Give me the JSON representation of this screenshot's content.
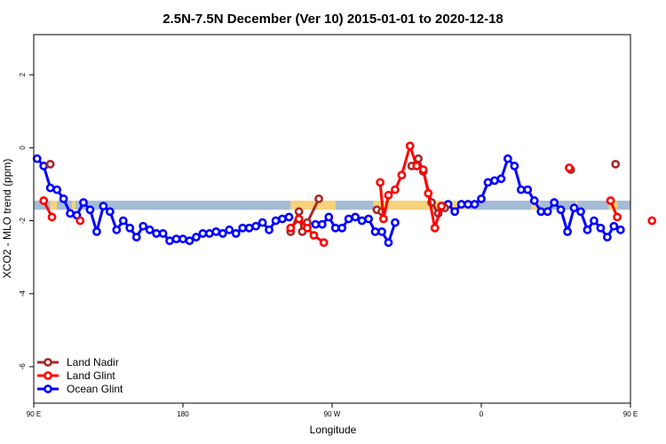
{
  "chart_data": {
    "type": "line",
    "title": "2.5N-7.5N December (Ver 10)   2015-01-01 to 2020-12-18",
    "xlabel": "Longitude",
    "ylabel": "XCO2 - MLO trend (ppm)",
    "xlim": [
      0,
      360
    ],
    "ylim": [
      -7,
      3.1
    ],
    "x_ticks": [
      {
        "value": 0,
        "label": "90 E"
      },
      {
        "value": 90,
        "label": "180"
      },
      {
        "value": 180,
        "label": "90 W"
      },
      {
        "value": 270,
        "label": "0"
      },
      {
        "value": 360,
        "label": "90 E"
      },
      {
        "value": 450,
        "label": "180"
      }
    ],
    "y_ticks": [
      2,
      0,
      -2,
      -4,
      -6
    ],
    "band_colors": {
      "ocean": "#a5bcd6",
      "land": "#f7d27a"
    },
    "bands": [
      {
        "x0": 0,
        "x1": 10,
        "type": "ocean"
      },
      {
        "x0": 10,
        "x1": 14,
        "type": "land"
      },
      {
        "x0": 14,
        "x1": 23,
        "type": "ocean"
      },
      {
        "x0": 23,
        "x1": 25,
        "type": "land"
      },
      {
        "x0": 25,
        "x1": 155,
        "type": "ocean"
      },
      {
        "x0": 155,
        "x1": 182,
        "type": "land"
      },
      {
        "x0": 182,
        "x1": 205,
        "type": "ocean"
      },
      {
        "x0": 205,
        "x1": 262,
        "type": "land"
      },
      {
        "x0": 262,
        "x1": 300,
        "type": "ocean"
      },
      {
        "x0": 300,
        "x1": 305,
        "type": "land"
      },
      {
        "x0": 305,
        "x1": 327,
        "type": "ocean"
      },
      {
        "x0": 327,
        "x1": 328,
        "type": "land"
      },
      {
        "x0": 328,
        "x1": 347,
        "type": "ocean"
      },
      {
        "x0": 347,
        "x1": 352,
        "type": "land"
      },
      {
        "x0": 352,
        "x1": 360,
        "type": "ocean"
      }
    ],
    "band_y": [
      -1.45,
      -1.7
    ],
    "series": [
      {
        "name": "Land Nadir",
        "color": "#a52a2a",
        "segments": [
          [
            [
              10,
              -0.45
            ]
          ],
          [
            [
              155,
              -2.3
            ],
            [
              160,
              -1.75
            ],
            [
              162,
              -2.3
            ],
            [
              165,
              -2.05
            ],
            [
              172,
              -1.4
            ]
          ],
          [
            [
              207,
              -1.7
            ],
            [
              210,
              -1.75
            ]
          ],
          [
            [
              228,
              -0.5
            ],
            [
              232,
              -0.3
            ],
            [
              235,
              -0.65
            ],
            [
              240,
              -1.5
            ],
            [
              244,
              -1.8
            ],
            [
              248,
              -1.65
            ]
          ],
          [
            [
              324,
              -0.6
            ]
          ],
          [
            [
              351,
              -0.45
            ]
          ]
        ]
      },
      {
        "name": "Land Glint",
        "color": "#ff0000",
        "segments": [
          [
            [
              6,
              -1.45
            ],
            [
              11,
              -1.9
            ]
          ],
          [
            [
              28,
              -2.0
            ]
          ],
          [
            [
              155,
              -2.2
            ],
            [
              160,
              -1.95
            ],
            [
              165,
              -2.2
            ],
            [
              169,
              -2.4
            ],
            [
              175,
              -2.6
            ]
          ],
          [
            [
              209,
              -0.95
            ],
            [
              211,
              -1.95
            ],
            [
              214,
              -1.3
            ],
            [
              218,
              -1.15
            ],
            [
              222,
              -0.75
            ],
            [
              227,
              0.05
            ],
            [
              231,
              -0.5
            ],
            [
              235,
              -0.6
            ],
            [
              238,
              -1.25
            ],
            [
              242,
              -2.2
            ],
            [
              246,
              -1.6
            ]
          ],
          [
            [
              323,
              -0.55
            ]
          ],
          [
            [
              348,
              -1.45
            ],
            [
              352,
              -1.9
            ]
          ],
          [
            [
              373,
              -2.0
            ]
          ]
        ]
      },
      {
        "name": "Ocean Glint",
        "color": "#0000ff",
        "segments": [
          [
            [
              2,
              -0.3
            ],
            [
              6,
              -0.5
            ],
            [
              10,
              -1.1
            ],
            [
              14,
              -1.15
            ],
            [
              18,
              -1.4
            ],
            [
              22,
              -1.8
            ],
            [
              26,
              -1.85
            ],
            [
              30,
              -1.5
            ],
            [
              34,
              -1.7
            ],
            [
              38,
              -2.3
            ],
            [
              42,
              -1.6
            ],
            [
              46,
              -1.75
            ],
            [
              50,
              -2.25
            ],
            [
              54,
              -2.0
            ],
            [
              58,
              -2.2
            ],
            [
              62,
              -2.45
            ],
            [
              66,
              -2.15
            ],
            [
              70,
              -2.25
            ],
            [
              74,
              -2.35
            ],
            [
              78,
              -2.35
            ],
            [
              82,
              -2.55
            ],
            [
              86,
              -2.5
            ],
            [
              90,
              -2.5
            ],
            [
              94,
              -2.55
            ],
            [
              98,
              -2.45
            ],
            [
              102,
              -2.35
            ],
            [
              106,
              -2.35
            ],
            [
              110,
              -2.3
            ],
            [
              114,
              -2.35
            ],
            [
              118,
              -2.25
            ],
            [
              122,
              -2.35
            ],
            [
              126,
              -2.2
            ],
            [
              130,
              -2.2
            ],
            [
              134,
              -2.15
            ],
            [
              138,
              -2.05
            ],
            [
              142,
              -2.25
            ],
            [
              146,
              -2.0
            ],
            [
              150,
              -1.95
            ],
            [
              154,
              -1.9
            ]
          ],
          [
            [
              170,
              -2.1
            ],
            [
              174,
              -2.1
            ],
            [
              178,
              -1.9
            ],
            [
              182,
              -2.2
            ],
            [
              186,
              -2.2
            ],
            [
              190,
              -1.95
            ],
            [
              194,
              -1.9
            ],
            [
              198,
              -2.0
            ],
            [
              202,
              -1.95
            ],
            [
              206,
              -2.3
            ],
            [
              210,
              -2.3
            ],
            [
              214,
              -2.6
            ],
            [
              218,
              -2.05
            ]
          ],
          [
            [
              246,
              -1.6
            ],
            [
              250,
              -1.55
            ],
            [
              254,
              -1.75
            ],
            [
              258,
              -1.55
            ],
            [
              262,
              -1.55
            ],
            [
              266,
              -1.55
            ],
            [
              270,
              -1.4
            ],
            [
              274,
              -0.95
            ],
            [
              278,
              -0.9
            ],
            [
              282,
              -0.85
            ],
            [
              286,
              -0.3
            ],
            [
              290,
              -0.5
            ],
            [
              294,
              -1.15
            ],
            [
              298,
              -1.15
            ],
            [
              302,
              -1.45
            ],
            [
              306,
              -1.75
            ],
            [
              310,
              -1.75
            ],
            [
              314,
              -1.5
            ],
            [
              318,
              -1.7
            ],
            [
              322,
              -2.3
            ],
            [
              326,
              -1.65
            ],
            [
              330,
              -1.75
            ],
            [
              334,
              -2.25
            ],
            [
              338,
              -2.0
            ],
            [
              342,
              -2.2
            ],
            [
              346,
              -2.45
            ],
            [
              350,
              -2.15
            ],
            [
              354,
              -2.25
            ]
          ]
        ]
      }
    ],
    "legend": {
      "position": "bottom-left"
    }
  }
}
